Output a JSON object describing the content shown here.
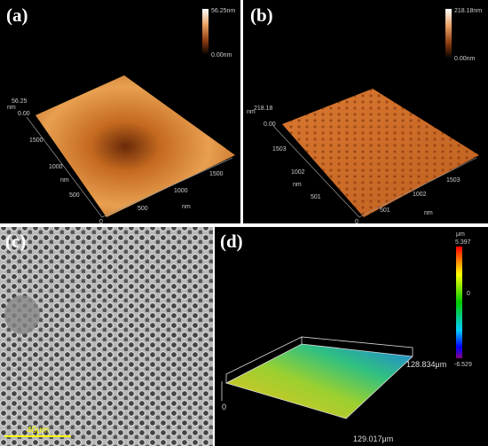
{
  "panels": [
    {
      "label": "(a)",
      "colorbar": {
        "max": "56.25nm",
        "min": "0.00nm"
      },
      "z_axis": {
        "max": "56.25",
        "unit": "nm",
        "min": "0.00"
      },
      "y_ticks": [
        "1500",
        "1000",
        "500",
        "0"
      ],
      "x_ticks": [
        "500",
        "1000",
        "1500"
      ],
      "y_unit": "nm",
      "x_unit": "nm"
    },
    {
      "label": "(b)",
      "colorbar": {
        "max": "218.18nm",
        "min": "0.00nm"
      },
      "z_axis": {
        "max": "218.18",
        "unit": "nm",
        "min": "0.00"
      },
      "y_ticks": [
        "1503",
        "1002",
        "501",
        "0"
      ],
      "x_ticks": [
        "501",
        "1002",
        "1503"
      ],
      "y_unit": "nm",
      "x_unit": "nm"
    },
    {
      "label": "(c)",
      "scale_bar": "40μm"
    },
    {
      "label": "(d)",
      "colorbar": {
        "unit": "μm",
        "max": "5.397",
        "mid": "0",
        "min": "-6.529"
      },
      "y_extent": "128.834μm",
      "x_extent": "129.017μm",
      "origin": "0"
    }
  ]
}
